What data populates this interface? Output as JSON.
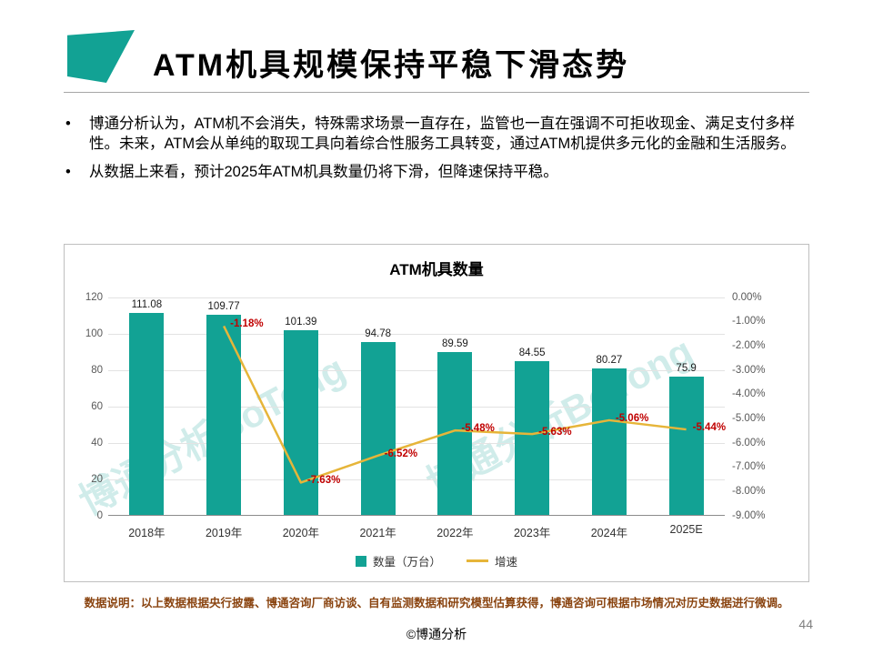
{
  "colors": {
    "accent": "#12A294",
    "line": "#E6B539",
    "value_label_red": "#C00000",
    "footnote_brown": "#8A4410"
  },
  "header": {
    "title": "ATM机具规模保持平稳下滑态势"
  },
  "bullets": [
    "博通分析认为，ATM机不会消失，特殊需求场景一直存在，监管也一直在强调不可拒收现金、满足支付多样性。未来，ATM会从单纯的取现工具向着综合性服务工具转变，通过ATM机提供多元化的金融和生活服务。",
    "从数据上来看，预计2025年ATM机具数量仍将下滑，但降速保持平稳。"
  ],
  "chart_data": {
    "type": "bar",
    "title": "ATM机具数量",
    "categories": [
      "2018年",
      "2019年",
      "2020年",
      "2021年",
      "2022年",
      "2023年",
      "2024年",
      "2025E"
    ],
    "series": [
      {
        "name": "数量（万台）",
        "type": "bar",
        "axis": "left",
        "color": "#12A294",
        "values": [
          111.08,
          109.77,
          101.39,
          94.78,
          89.59,
          84.55,
          80.27,
          75.9
        ]
      },
      {
        "name": "增速",
        "type": "line",
        "axis": "right",
        "color": "#E6B539",
        "label_color": "#C00000",
        "values": [
          null,
          -1.18,
          -7.63,
          -6.52,
          -5.48,
          -5.63,
          -5.06,
          -5.44
        ]
      }
    ],
    "left_axis": {
      "min": 0,
      "max": 120,
      "step": 20,
      "ticks": [
        "0",
        "20",
        "40",
        "60",
        "80",
        "100",
        "120"
      ]
    },
    "right_axis": {
      "min": -9,
      "max": 0,
      "step": 1,
      "ticks": [
        "0.00%",
        "-1.00%",
        "-2.00%",
        "-3.00%",
        "-4.00%",
        "-5.00%",
        "-6.00%",
        "-7.00%",
        "-8.00%",
        "-9.00%"
      ]
    },
    "legend": [
      "数量（万台）",
      "增速"
    ],
    "legend_position": "bottom",
    "grid": true,
    "watermark": "博通分析BoTong"
  },
  "footnote": "数据说明：以上数据根据央行披露、博通咨询厂商访谈、自有监测数据和研究模型估算获得，博通咨询可根据市场情况对历史数据进行微调。",
  "footer": {
    "copyright": "©博通分析",
    "page": "44"
  }
}
